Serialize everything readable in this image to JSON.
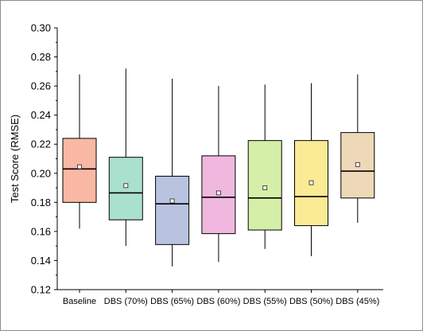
{
  "chart_data": {
    "type": "box",
    "title": "",
    "xlabel": "",
    "ylabel": "Test Score (RMSE)",
    "ylim": [
      0.12,
      0.3
    ],
    "yticks": [
      "0.12",
      "0.14",
      "0.16",
      "0.18",
      "0.20",
      "0.22",
      "0.24",
      "0.26",
      "0.28",
      "0.30"
    ],
    "categories": [
      "Baseline",
      "DBS (70%)",
      "DBS (65%)",
      "DBS (60%)",
      "DBS (55%)",
      "DBS (50%)",
      "DBS (45%)"
    ],
    "boxes": [
      {
        "category": "Baseline",
        "min": 0.162,
        "q1": 0.18,
        "median": 0.203,
        "q3": 0.224,
        "max": 0.268,
        "mean": 0.2045,
        "color": "#f9b8a4"
      },
      {
        "category": "DBS (70%)",
        "min": 0.15,
        "q1": 0.168,
        "median": 0.1865,
        "q3": 0.211,
        "max": 0.272,
        "mean": 0.1915,
        "color": "#a9e0ce"
      },
      {
        "category": "DBS (65%)",
        "min": 0.136,
        "q1": 0.151,
        "median": 0.179,
        "q3": 0.198,
        "max": 0.265,
        "mean": 0.181,
        "color": "#b8c3e0"
      },
      {
        "category": "DBS (60%)",
        "min": 0.139,
        "q1": 0.1585,
        "median": 0.1835,
        "q3": 0.212,
        "max": 0.26,
        "mean": 0.1865,
        "color": "#f0b8de"
      },
      {
        "category": "DBS (55%)",
        "min": 0.148,
        "q1": 0.161,
        "median": 0.183,
        "q3": 0.2225,
        "max": 0.261,
        "mean": 0.19,
        "color": "#d6efa8"
      },
      {
        "category": "DBS (50%)",
        "min": 0.143,
        "q1": 0.164,
        "median": 0.184,
        "q3": 0.2225,
        "max": 0.262,
        "mean": 0.1935,
        "color": "#fbeb94"
      },
      {
        "category": "DBS (45%)",
        "min": 0.166,
        "q1": 0.183,
        "median": 0.2015,
        "q3": 0.228,
        "max": 0.268,
        "mean": 0.206,
        "color": "#efd8b8"
      }
    ],
    "grid": false,
    "legend": "none"
  }
}
